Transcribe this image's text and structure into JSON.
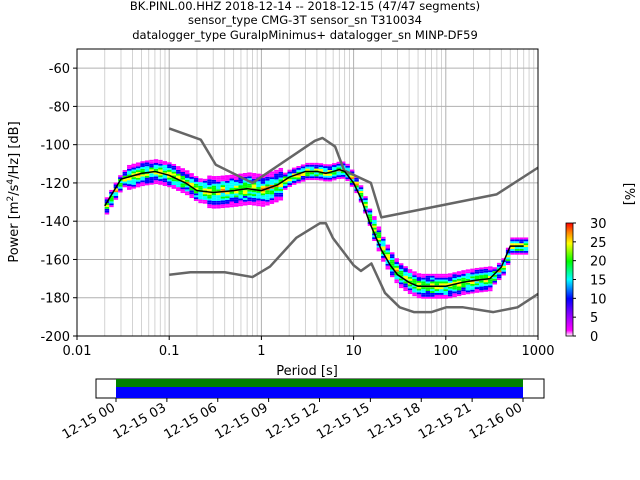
{
  "title": {
    "line1": "BK.PINL.00.HHZ   2018-12-14 -- 2018-12-15  (47/47 segments)",
    "line2": "sensor_type CMG-3T sensor_sn T310034",
    "line3": "datalogger_type GuralpMinimus+ datalogger_sn MINP-DF59"
  },
  "colors": {
    "noise_model": "#666666",
    "median": "#000000",
    "coverage_fill": "#0000ff",
    "coverage_top": "#008000",
    "colormap": [
      "#ffffff",
      "#ff00ff",
      "#0000ff",
      "#00ffff",
      "#00ff00",
      "#ffff00",
      "#ff8000",
      "#ff0000"
    ]
  },
  "chart_data": [
    {
      "type": "heatmap",
      "title": "BK.PINL.00.HHZ   2018-12-14 -- 2018-12-15  (47/47 segments)",
      "xlabel": "Period [s]",
      "ylabel": "Power [m^2/s^4/Hz] [dB]",
      "xscale": "log",
      "xlim": [
        0.01,
        1000
      ],
      "ylim": [
        -200,
        -50
      ],
      "x_tick_labels": [
        "0.01",
        "0.1",
        "1",
        "10",
        "100",
        "1000"
      ],
      "y_tick_labels": [
        "-200",
        "-180",
        "-160",
        "-140",
        "-120",
        "-100",
        "-80",
        "-60"
      ],
      "grid": true,
      "colorbar": {
        "label": "[%]",
        "range": [
          0,
          30
        ],
        "ticks": [
          "0",
          "5",
          "10",
          "15",
          "20",
          "25",
          "30"
        ]
      },
      "series": [
        {
          "role": "median",
          "x": [
            0.02,
            0.03,
            0.05,
            0.07,
            0.1,
            0.15,
            0.2,
            0.3,
            0.5,
            0.7,
            1,
            1.5,
            2,
            3,
            4,
            5,
            6,
            7,
            8,
            10,
            12,
            15,
            20,
            25,
            30,
            40,
            50,
            60,
            80,
            100,
            150,
            200,
            300,
            400,
            500,
            700
          ],
          "y": [
            -132,
            -118,
            -115,
            -114,
            -116,
            -120,
            -124,
            -125,
            -124,
            -123,
            -124,
            -121,
            -117,
            -114,
            -114,
            -115,
            -114,
            -113,
            -114,
            -120,
            -128,
            -141,
            -155,
            -163,
            -168,
            -172,
            -174,
            -174,
            -174,
            -174,
            -172,
            -171,
            -170,
            -164,
            -153,
            -153
          ]
        },
        {
          "role": "noise-model-high",
          "x": [
            0.1,
            0.22,
            0.32,
            0.8,
            3.8,
            4.6,
            6.3,
            7.9,
            15.4,
            20,
            354.8,
            1000
          ],
          "y": [
            -91.5,
            -97.4,
            -110.5,
            -120,
            -98,
            -96.5,
            -101,
            -113.5,
            -120,
            -138,
            -126,
            -112
          ]
        },
        {
          "role": "noise-model-low",
          "x": [
            0.1,
            0.17,
            0.4,
            0.8,
            1.24,
            2.4,
            4.3,
            5,
            6,
            10,
            12,
            15.6,
            21.9,
            31.6,
            45,
            70,
            101,
            154,
            328,
            600,
            1000
          ],
          "y": [
            -168,
            -166.7,
            -166.7,
            -169.2,
            -163.7,
            -148.6,
            -141.1,
            -141.1,
            -149,
            -163,
            -166,
            -162.1,
            -177.5,
            -185,
            -187.5,
            -187.5,
            -185,
            -185,
            -187.5,
            -185,
            -178
          ]
        }
      ]
    },
    {
      "type": "bar",
      "role": "data-coverage",
      "x_tick_labels": [
        "12-15 00",
        "12-15 03",
        "12-15 06",
        "12-15 09",
        "12-15 12",
        "12-15 15",
        "12-15 18",
        "12-15 21",
        "12-16 00"
      ],
      "coverage": {
        "start": "12-15 00",
        "end": "12-16 00",
        "segments": 47
      }
    }
  ]
}
